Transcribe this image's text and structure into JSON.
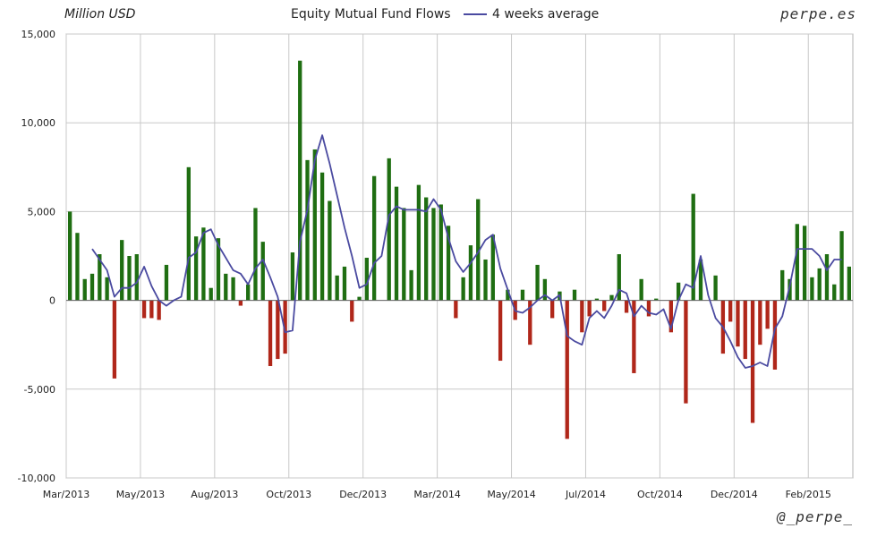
{
  "header": {
    "unit": "Million USD",
    "title": "Equity Mutual Fund Flows",
    "legend_label": "4 weeks average",
    "brand_top": "perpe.es",
    "brand_bottom": "@_perpe_"
  },
  "colors": {
    "positive_bar": "#1f6e12",
    "negative_bar": "#b0271a",
    "average_line": "#4a4aa0",
    "grid": "#c8c8c8"
  },
  "chart_data": {
    "type": "bar",
    "title": "Equity Mutual Fund Flows",
    "ylabel": "Million USD",
    "ylim": [
      -10000,
      15000
    ],
    "yticks": [
      -10000,
      -5000,
      0,
      5000,
      10000,
      15000
    ],
    "ytick_labels": [
      "-10,000",
      "-5,000",
      "0",
      "5,000",
      "10,000",
      "15,000"
    ],
    "xtick_labels": [
      "Mar/2013",
      "May/2013",
      "Aug/2013",
      "Oct/2013",
      "Dec/2013",
      "Mar/2014",
      "May/2014",
      "Jul/2014",
      "Oct/2014",
      "Dec/2014",
      "Feb/2015"
    ],
    "xtick_positions": [
      0,
      10,
      20,
      30,
      40,
      50,
      60,
      70,
      80,
      90,
      100
    ],
    "grid": true,
    "legend_position": "top",
    "series": [
      {
        "name": "",
        "kind": "bar",
        "values": [
          5000,
          3800,
          1200,
          1500,
          2600,
          1300,
          -4400,
          3400,
          2500,
          2600,
          -1000,
          -1000,
          -1100,
          2000,
          0,
          0,
          7500,
          3600,
          4100,
          700,
          3500,
          1500,
          1300,
          -300,
          900,
          5200,
          3300,
          -3700,
          -3300,
          -3000,
          2700,
          13500,
          7900,
          8500,
          7200,
          5600,
          1400,
          1900,
          -1200,
          200,
          2400,
          7000,
          0,
          8000,
          6400,
          5200,
          1700,
          6500,
          5800,
          5200,
          5400,
          4200,
          -1000,
          1300,
          3100,
          5700,
          2300,
          3700,
          -3400,
          600,
          -1100,
          600,
          -2500,
          2000,
          1200,
          -1000,
          500,
          -7800,
          600,
          -1800,
          -900,
          100,
          -600,
          300,
          2600,
          -700,
          -4100,
          1200,
          -900,
          100,
          0,
          -1800,
          1000,
          -5800,
          6000,
          2300,
          0,
          1400,
          -3000,
          -1200,
          -2600,
          -3300,
          -6900,
          -2500,
          -1600,
          -3900,
          1700,
          1200,
          4300,
          4200,
          1300,
          1800,
          2600,
          900,
          3900,
          1900
        ]
      },
      {
        "name": "4 weeks average",
        "kind": "line",
        "values": [
          null,
          null,
          null,
          2900,
          2300,
          1700,
          200,
          700,
          700,
          1000,
          1900,
          800,
          0,
          -300,
          0,
          200,
          2400,
          2700,
          3800,
          4000,
          3100,
          2400,
          1700,
          1500,
          900,
          1800,
          2300,
          1300,
          200,
          -1800,
          -1700,
          3300,
          5100,
          7900,
          9300,
          7700,
          5900,
          4100,
          2500,
          700,
          900,
          2100,
          2500,
          4800,
          5300,
          5100,
          5100,
          5100,
          5000,
          5700,
          5100,
          3500,
          2200,
          1600,
          2100,
          2700,
          3400,
          3700,
          1800,
          600,
          -600,
          -700,
          -400,
          0,
          300,
          0,
          300,
          -2000,
          -2300,
          -2500,
          -1000,
          -600,
          -1000,
          -300,
          600,
          400,
          -900,
          -300,
          -700,
          -800,
          -500,
          -1600,
          0,
          900,
          700,
          2500,
          300,
          -1000,
          -1500,
          -2300,
          -3200,
          -3800,
          -3700,
          -3500,
          -3700,
          -1600,
          -900,
          800,
          2900,
          2900,
          2900,
          2500,
          1700,
          2300,
          2300
        ]
      }
    ]
  }
}
